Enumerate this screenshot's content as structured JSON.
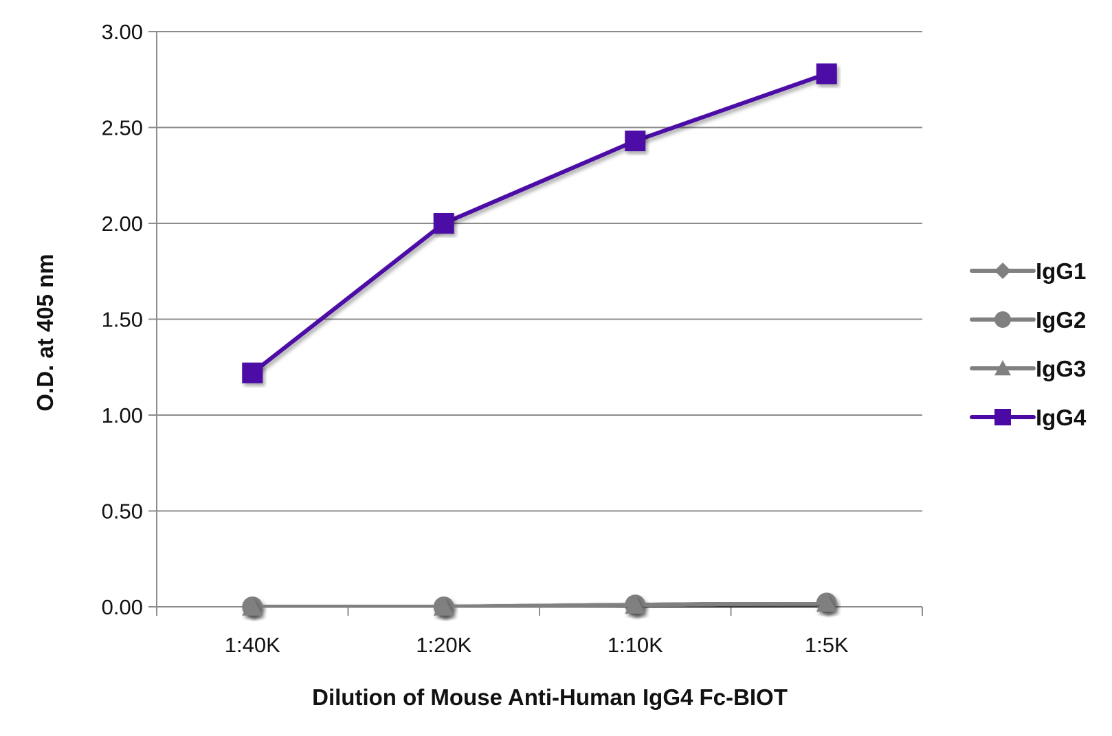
{
  "chart_data": {
    "type": "line",
    "title": "",
    "xlabel": "Dilution of Mouse Anti-Human IgG4 Fc-BIOT",
    "ylabel": "O.D. at 405 nm",
    "categories": [
      "1:40K",
      "1:20K",
      "1:10K",
      "1:5K"
    ],
    "ylim": [
      0,
      3
    ],
    "yticks": [
      "0.00",
      "0.50",
      "1.00",
      "1.50",
      "2.00",
      "2.50",
      "3.00"
    ],
    "grid": true,
    "legend_position": "right",
    "series": [
      {
        "name": "IgG1",
        "marker": "diamond",
        "color": "#808080",
        "values": [
          0.0,
          0.0,
          0.01,
          0.02
        ]
      },
      {
        "name": "IgG2",
        "marker": "circle",
        "color": "#808080",
        "values": [
          0.0,
          0.0,
          0.01,
          0.02
        ]
      },
      {
        "name": "IgG3",
        "marker": "triangle",
        "color": "#808080",
        "values": [
          0.0,
          0.0,
          0.01,
          0.02
        ]
      },
      {
        "name": "IgG4",
        "marker": "square",
        "color": "#4B0AA6",
        "values": [
          1.22,
          2.0,
          2.43,
          2.78
        ]
      }
    ]
  }
}
